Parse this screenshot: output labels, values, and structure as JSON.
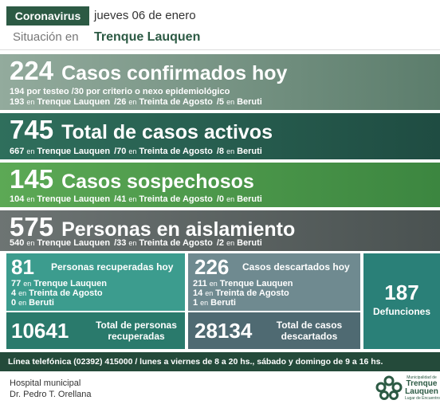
{
  "header": {
    "tag": "Coronavirus",
    "date": "jueves 06 de enero",
    "situation": "Situación en",
    "city": "Trenque Lauquen"
  },
  "bands": [
    {
      "number": 224,
      "label": "Casos confirmados hoy",
      "lines": [
        "194 por testeo  /30 por criterio o nexo epidemiológico",
        [
          {
            "count": "193",
            "word": "en",
            "place": "Trenque Lauquen"
          },
          {
            "count": "/26",
            "word": "en",
            "place": "Treinta de Agosto"
          },
          {
            "count": "/5",
            "word": "en",
            "place": "Beruti"
          }
        ]
      ]
    },
    {
      "number": 745,
      "label": "Total de casos activos",
      "lines": [
        [
          {
            "count": "667",
            "word": "en",
            "place": "Trenque Lauquen"
          },
          {
            "count": "/70",
            "word": "en",
            "place": "Treinta de Agosto"
          },
          {
            "count": "/8",
            "word": "en",
            "place": "Beruti"
          }
        ]
      ]
    },
    {
      "number": 145,
      "label": "Casos sospechosos",
      "lines": [
        [
          {
            "count": "104",
            "word": "en",
            "place": "Trenque Lauquen"
          },
          {
            "count": "/41",
            "word": "en",
            "place": "Treinta de Agosto"
          },
          {
            "count": "/0",
            "word": "en",
            "place": "Beruti"
          }
        ]
      ]
    },
    {
      "number": 575,
      "label": "Personas en aislamiento",
      "lines": [
        [
          {
            "count": "540",
            "word": "en",
            "place": "Trenque Lauquen"
          },
          {
            "count": "/33",
            "word": "en",
            "place": "Treinta de Agosto"
          },
          {
            "count": "/2",
            "word": "en",
            "place": "Beruti"
          }
        ]
      ]
    }
  ],
  "recovered": {
    "today": 81,
    "today_label": "Personas recuperadas hoy",
    "breakdown": [
      {
        "count": "77",
        "word": "en",
        "place": "Trenque Lauquen"
      },
      {
        "count": "4",
        "word": "en",
        "place": "Treinta de Agosto"
      },
      {
        "count": "0",
        "word": "en",
        "place": "Beruti"
      }
    ],
    "total": 10641,
    "total_label": [
      "Total de personas",
      "recuperadas"
    ]
  },
  "discarded": {
    "today": 226,
    "today_label": "Casos descartados hoy",
    "breakdown": [
      {
        "count": "211",
        "word": "en",
        "place": "Trenque Lauquen"
      },
      {
        "count": "14",
        "word": "en",
        "place": "Treinta de Agosto"
      },
      {
        "count": "1",
        "word": "en",
        "place": "Beruti"
      }
    ],
    "total": 28134,
    "total_label": [
      "Total de casos",
      "descartados"
    ]
  },
  "deaths": {
    "number": 187,
    "label": "Defunciones"
  },
  "footer": {
    "phone": "Línea telefónica (02392) 415000 / lunes a viernes de 8 a 20 hs., sábado y domingo de 9 a 16 hs.",
    "hospital": [
      "Hospital municipal",
      "Dr. Pedro T. Orellana"
    ],
    "logo": [
      "Municipalidad de",
      "Trenque",
      "Lauquen",
      "Lugar de Encuentro"
    ]
  }
}
